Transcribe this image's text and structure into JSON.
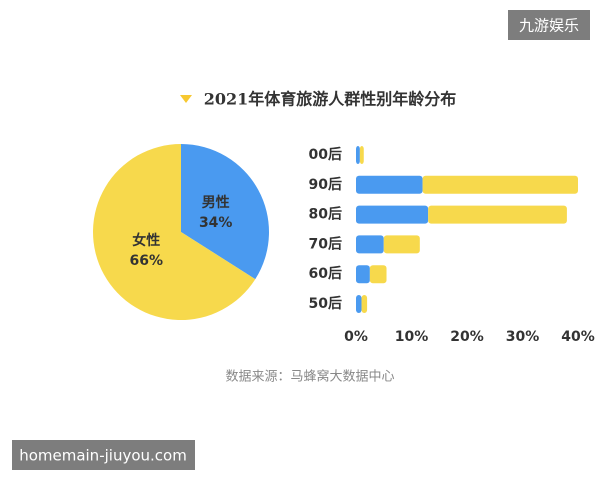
{
  "watermark_top": "九游娱乐",
  "watermark_bottom": "homemain-jiuyou.com",
  "chart_data": [
    {
      "type": "pie",
      "title": "2021年体育旅游人群性别年龄分布",
      "categories": [
        "男性",
        "女性"
      ],
      "values": [
        34,
        66
      ],
      "value_labels": [
        "34%",
        "66%"
      ],
      "colors": [
        "#4a9af0",
        "#f7d94c"
      ]
    },
    {
      "type": "bar",
      "source": "数据来源：马蜂窝大数据中心",
      "categories": [
        "00后",
        "90后",
        "80后",
        "70后",
        "60后",
        "50后"
      ],
      "series": [
        {
          "color": "#4a9af0",
          "values": [
            0.7,
            12,
            13,
            5,
            2.5,
            1
          ]
        },
        {
          "color": "#f7d94c",
          "values": [
            0.7,
            28,
            25,
            6.5,
            3,
            1
          ]
        }
      ],
      "xlim": [
        0,
        40
      ],
      "xticks": [
        {
          "value": 0,
          "label": "0%"
        },
        {
          "value": 10,
          "label": "10%"
        },
        {
          "value": 20,
          "label": "20%"
        },
        {
          "value": 30,
          "label": "30%"
        },
        {
          "value": 40,
          "label": "40%"
        }
      ]
    }
  ]
}
